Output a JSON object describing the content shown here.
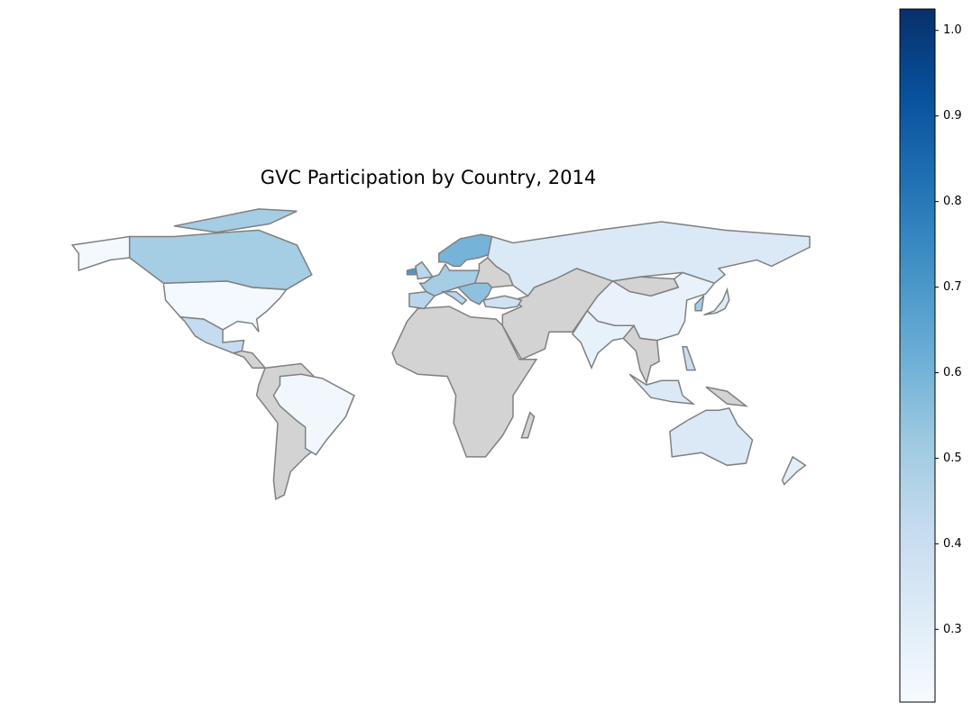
{
  "chart_data": {
    "type": "choropleth",
    "title": "GVC Participation by Country, 2014",
    "values": [
      0.23,
      0.5,
      0.42,
      0.24,
      0.45,
      0.5,
      0.45,
      0.55,
      0.45,
      0.7,
      0.6,
      0.33,
      0.38,
      0.27,
      0.28,
      0.5,
      0.32,
      0.33,
      0.4,
      0.33,
      0.3
    ],
    "colormap": [
      "#f7fbff",
      "#deebf7",
      "#c6dbef",
      "#9ecae1",
      "#6baed6",
      "#4292c6",
      "#2171b5",
      "#08519c",
      "#08306b"
    ],
    "missing_color": "#d3d3d3",
    "edge_color": "#808080",
    "clim": [
      0.215,
      1.025
    ],
    "cticks": [
      0.3,
      0.4,
      0.5,
      0.6,
      0.7,
      0.8,
      0.9,
      {
        "value": 1,
        "label": "1.0"
      }
    ]
  }
}
